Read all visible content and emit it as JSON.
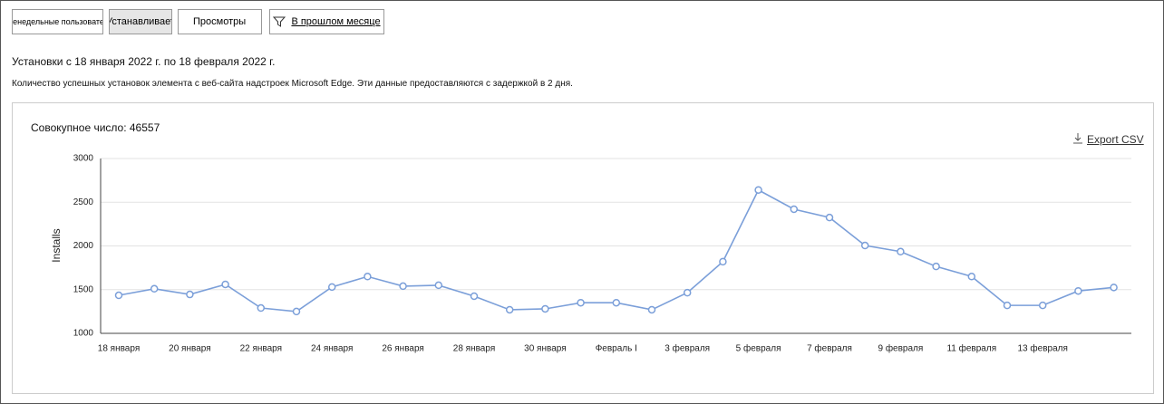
{
  "tabs": [
    "Еженедельные пользователи",
    "Устанавливает",
    "Просмотры"
  ],
  "filter": "В прошлом месяце",
  "heading": "Установки с 18 января 2022 г. по 18 февраля 2022 г.",
  "description": "Количество успешных установок элемента с веб-сайта надстроек Microsoft Edge. Эти данные предоставляются с задержкой в 2 дня.",
  "total": "Совокупное число: 46557",
  "export": "Export CSV",
  "chart_data": {
    "type": "line",
    "ylabel": "Installs",
    "categories": [
      "18 января",
      null,
      "20 января",
      null,
      "22 января",
      null,
      "24 января",
      null,
      "26 января",
      null,
      "28 января",
      null,
      "30 января",
      null,
      "Февраль I",
      null,
      "3 февраля",
      null,
      "5 февраля",
      null,
      "7 февраля",
      null,
      "9 февраля",
      null,
      "11 февраля",
      null,
      "13 февраля",
      null,
      null
    ],
    "series": [
      {
        "name": "Installs",
        "color": "#7b9fd9",
        "values": [
          1435,
          1510,
          1445,
          1560,
          1290,
          1250,
          1530,
          1650,
          1540,
          1550,
          1425,
          1270,
          1280,
          1350,
          1350,
          1270,
          1465,
          1820,
          2640,
          2420,
          2325,
          2005,
          1935,
          1765,
          1650,
          1320,
          1320,
          1485,
          1525
        ]
      }
    ],
    "ylim": [
      1000,
      3000
    ],
    "yticks": [
      1000,
      1500,
      2000,
      2500,
      3000
    ],
    "grid": true
  }
}
